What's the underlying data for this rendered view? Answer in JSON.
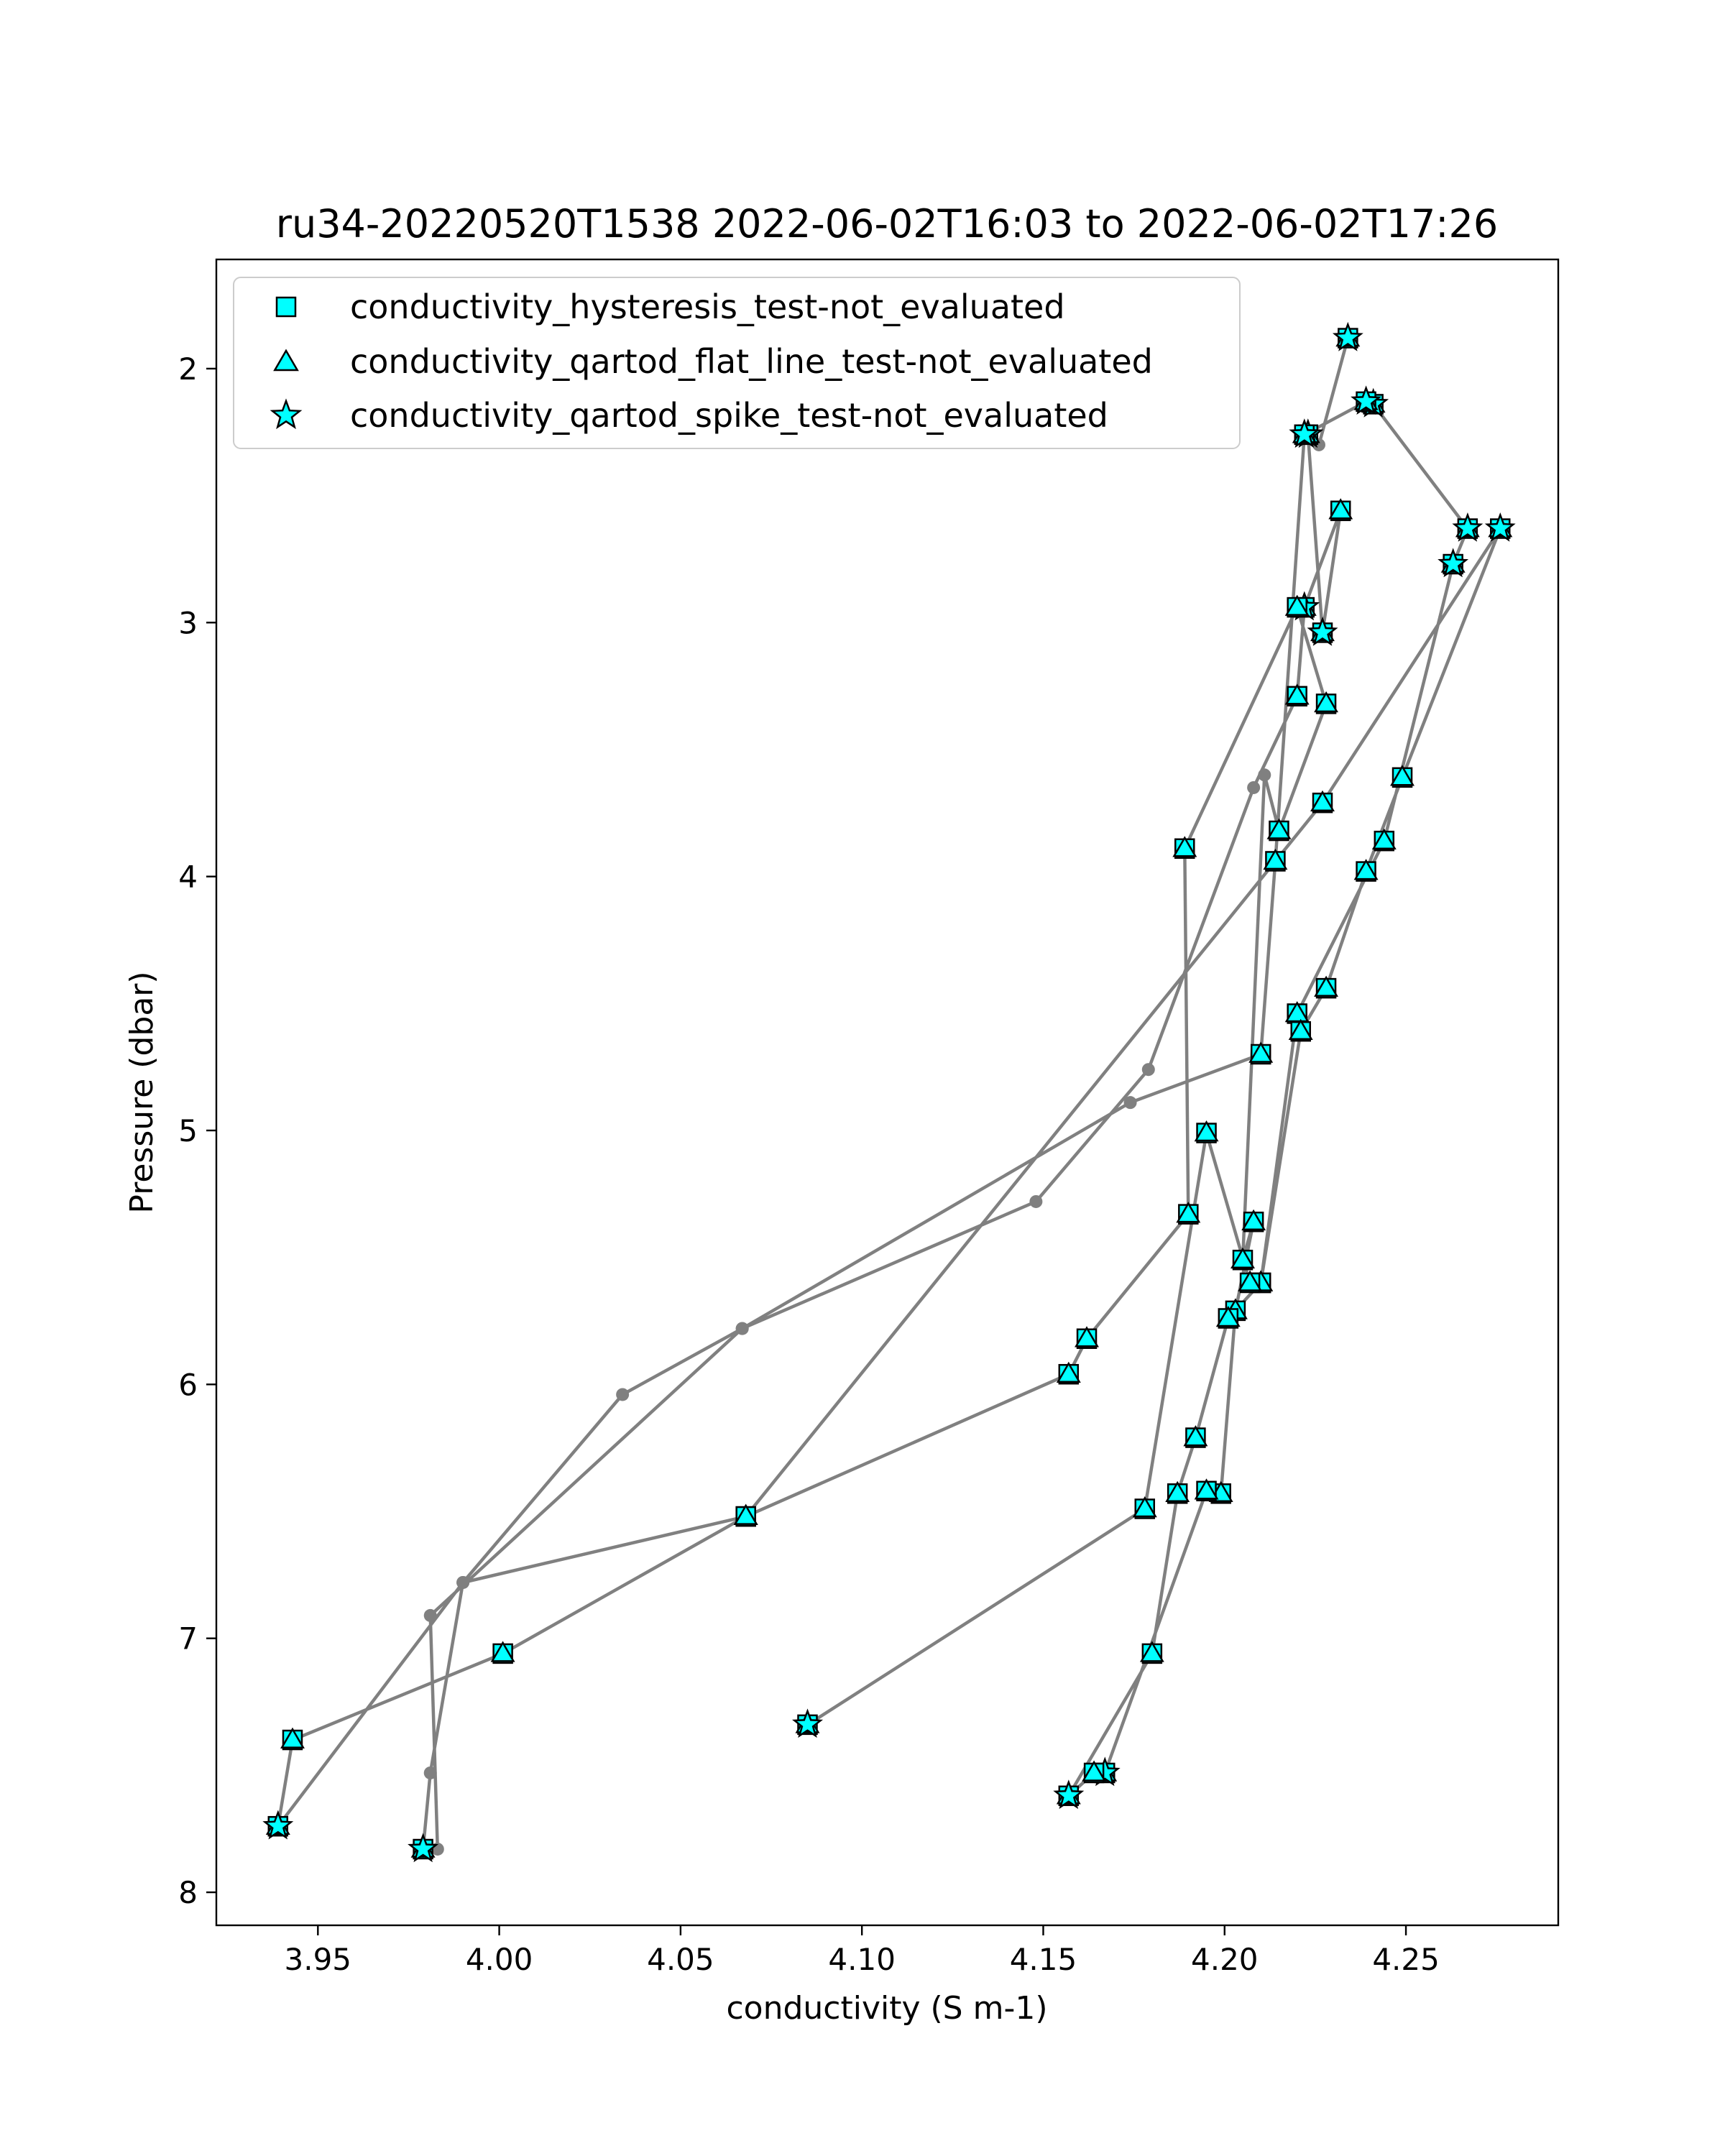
{
  "chart_data": {
    "type": "scatter",
    "title": "ru34-20220520T1538 2022-06-02T16:03 to 2022-06-02T17:26",
    "xlabel": "conductivity (S m-1)",
    "ylabel": "Pressure (dbar)",
    "xlim": [
      3.922,
      4.292
    ],
    "ylim": [
      8.13,
      1.57
    ],
    "y_inverted": true,
    "x_ticks": [
      3.95,
      4.0,
      4.05,
      4.1,
      4.15,
      4.2,
      4.25
    ],
    "x_tick_labels": [
      "3.95",
      "4.00",
      "4.05",
      "4.10",
      "4.15",
      "4.20",
      "4.25"
    ],
    "y_ticks": [
      2,
      3,
      4,
      5,
      6,
      7,
      8
    ],
    "y_tick_labels": [
      "2",
      "3",
      "4",
      "5",
      "6",
      "7",
      "8"
    ],
    "grid": false,
    "legend_position": "top-left",
    "colors": {
      "line": "#808080",
      "marker_fill": "#00ffff",
      "marker_edge": "#000000",
      "axes": "#000000",
      "background": "#ffffff"
    },
    "trace": {
      "x": [
        4.234,
        4.226,
        4.223,
        4.227,
        4.232,
        4.222,
        4.22,
        4.208,
        4.179,
        4.148,
        4.067,
        4.034,
        3.99,
        3.939,
        3.943,
        4.001,
        4.068,
        4.157,
        4.162,
        4.19,
        4.189,
        4.22,
        4.228,
        4.215,
        4.211,
        4.205,
        4.208,
        4.203,
        4.199,
        4.195,
        4.167,
        4.164,
        4.157,
        4.18,
        4.187,
        4.192,
        4.201,
        4.21,
        4.22,
        4.244,
        4.263,
        4.267,
        4.241,
        4.239,
        4.222,
        4.214,
        4.21,
        4.174,
        4.067,
        3.981,
        3.983,
        3.979,
        3.981,
        3.99,
        4.068,
        4.227,
        4.276,
        4.249,
        4.239,
        4.228,
        4.221,
        4.21,
        4.207,
        4.195,
        4.178,
        4.085
      ],
      "y": [
        1.88,
        2.3,
        2.26,
        3.04,
        2.56,
        2.94,
        3.29,
        3.65,
        4.76,
        5.28,
        5.78,
        6.04,
        6.78,
        7.74,
        7.4,
        7.06,
        6.52,
        5.96,
        5.82,
        5.33,
        3.89,
        2.94,
        3.32,
        3.82,
        3.6,
        5.51,
        5.36,
        5.71,
        6.43,
        6.42,
        7.53,
        7.53,
        7.62,
        7.06,
        6.43,
        6.21,
        5.74,
        5.6,
        4.54,
        3.86,
        2.77,
        2.63,
        2.14,
        2.13,
        2.26,
        3.94,
        4.7,
        4.89,
        5.78,
        6.91,
        7.83,
        7.83,
        7.53,
        6.78,
        6.52,
        3.71,
        2.63,
        3.61,
        3.98,
        4.44,
        4.61,
        5.6,
        5.6,
        5.01,
        6.49,
        7.34
      ],
      "markers": [
        "s",
        "d",
        "s",
        "s",
        "s",
        "s",
        "s",
        "d",
        "d",
        "d",
        "d",
        "d",
        "d",
        "s",
        "s",
        "s",
        "s",
        "s",
        "s",
        "s",
        "s",
        "s",
        "s",
        "s",
        "d",
        "s",
        "s",
        "s",
        "s",
        "s",
        "s",
        "s",
        "s",
        "s",
        "s",
        "s",
        "s",
        "s",
        "s",
        "s",
        "s",
        "s",
        "s",
        "s",
        "s",
        "s",
        "s",
        "d",
        "d",
        "d",
        "d",
        "s",
        "d",
        "d",
        "s",
        "s",
        "s",
        "s",
        "s",
        "s",
        "s",
        "s",
        "s",
        "s",
        "s",
        "s"
      ],
      "star_indices": [
        0,
        2,
        3,
        5,
        13,
        30,
        32,
        40,
        41,
        42,
        43,
        44,
        51,
        56,
        65
      ]
    },
    "series": [
      {
        "name": "conductivity_hysteresis_test-not_evaluated",
        "marker": "square"
      },
      {
        "name": "conductivity_qartod_flat_line_test-not_evaluated",
        "marker": "triangle"
      },
      {
        "name": "conductivity_qartod_spike_test-not_evaluated",
        "marker": "star"
      }
    ]
  }
}
